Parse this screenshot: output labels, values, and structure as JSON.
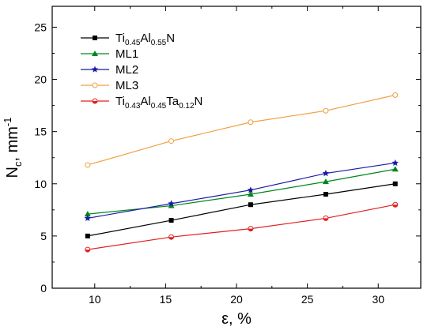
{
  "chart_data": {
    "type": "line",
    "x": [
      9.5,
      15.4,
      21,
      26.3,
      31.2
    ],
    "xlim": [
      7,
      33
    ],
    "ylim": [
      0,
      27
    ],
    "xticks": [
      10,
      15,
      20,
      25,
      30
    ],
    "yticks": [
      0,
      5,
      10,
      15,
      20,
      25
    ],
    "xlabel": "ε, %",
    "ylabel": "N",
    "ylabel_sub": "c",
    "ylabel_unit": ", mm",
    "ylabel_sup": "-1",
    "legend_position": "top-left",
    "grid": false,
    "series": [
      {
        "id": "ti45",
        "name_parts": [
          {
            "t": "Ti",
            "s": "n"
          },
          {
            "t": "0.45",
            "s": "sub"
          },
          {
            "t": "Al",
            "s": "n"
          },
          {
            "t": "0.55",
            "s": "sub"
          },
          {
            "t": "N",
            "s": "n"
          }
        ],
        "values": [
          5.0,
          6.5,
          8.0,
          9.0,
          10.0
        ],
        "color": "#000000",
        "marker": "square",
        "filled": "full"
      },
      {
        "id": "ml1",
        "name_parts": [
          {
            "t": "ML1",
            "s": "n"
          }
        ],
        "values": [
          7.1,
          7.9,
          9.0,
          10.2,
          11.4
        ],
        "color": "#00861a",
        "marker": "triangle",
        "filled": "full"
      },
      {
        "id": "ml2",
        "name_parts": [
          {
            "t": "ML2",
            "s": "n"
          }
        ],
        "values": [
          6.7,
          8.1,
          9.4,
          11.0,
          12.0
        ],
        "color": "#1a1aa6",
        "marker": "star",
        "filled": "full"
      },
      {
        "id": "ml3",
        "name_parts": [
          {
            "t": "ML3",
            "s": "n"
          }
        ],
        "values": [
          11.8,
          14.1,
          15.9,
          17.0,
          18.5
        ],
        "color": "#f0a040",
        "marker": "circle",
        "filled": "open"
      },
      {
        "id": "ti43",
        "name_parts": [
          {
            "t": "Ti",
            "s": "n"
          },
          {
            "t": "0.43",
            "s": "sub"
          },
          {
            "t": "Al",
            "s": "n"
          },
          {
            "t": "0.45",
            "s": "sub"
          },
          {
            "t": "Ta",
            "s": "n"
          },
          {
            "t": "0.12",
            "s": "sub"
          },
          {
            "t": "N",
            "s": "n"
          }
        ],
        "values": [
          3.7,
          4.9,
          5.7,
          6.7,
          8.0
        ],
        "color": "#e02020",
        "marker": "circle",
        "filled": "half"
      }
    ]
  }
}
